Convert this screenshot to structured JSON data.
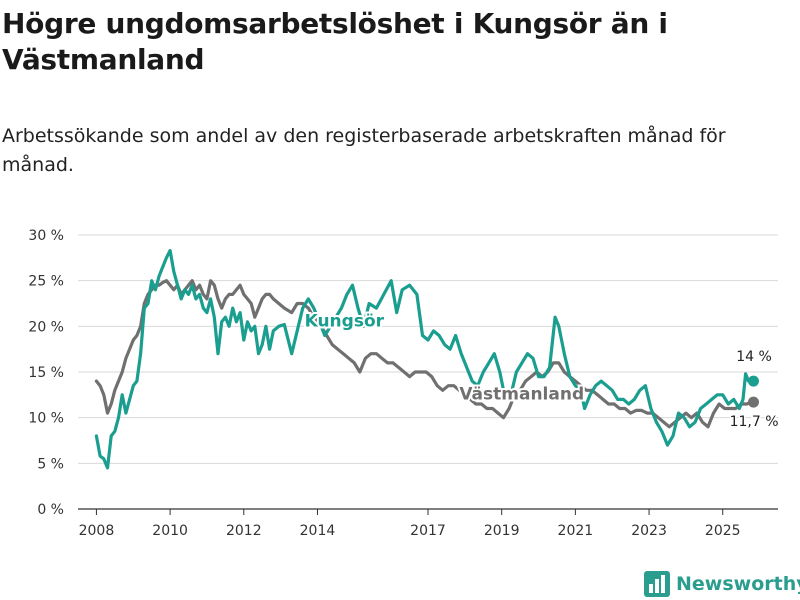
{
  "title": "Högre ungdomsarbetslöshet i Kungsör än i Västmanland",
  "subtitle": "Arbetssökande som andel av den registerbaserade arbetskraften månad för månad.",
  "brand": {
    "name": "Newsworthy",
    "icon": "bar-chart-logo-icon"
  },
  "colors": {
    "kungsor": "#1a9e8f",
    "vastmanland": "#707070",
    "grid": "#d9d9d9"
  },
  "chart_data": {
    "type": "line",
    "title": "Högre ungdomsarbetslöshet i Kungsör än i Västmanland",
    "ylabel": "",
    "xlabel": "",
    "ylim": [
      0,
      30
    ],
    "xlim": [
      2007.5,
      2026.5
    ],
    "y_ticks": [
      0,
      5,
      10,
      15,
      20,
      25,
      30
    ],
    "y_tick_labels": [
      "0 %",
      "5 %",
      "10 %",
      "15 %",
      "20 %",
      "25 %",
      "30 %"
    ],
    "x_ticks": [
      2008,
      2010,
      2012,
      2014,
      2017,
      2019,
      2021,
      2023,
      2025
    ],
    "x_tick_labels": [
      "2008",
      "2010",
      "2012",
      "2014",
      "2017",
      "2019",
      "2021",
      "2023",
      "2025"
    ],
    "series": [
      {
        "name": "Kungsör",
        "label": "Kungsör",
        "end_label": "14 %",
        "end_value": 14.0,
        "points": [
          [
            2008.0,
            8.0
          ],
          [
            2008.1,
            5.8
          ],
          [
            2008.2,
            5.5
          ],
          [
            2008.3,
            4.5
          ],
          [
            2008.4,
            8.0
          ],
          [
            2008.5,
            8.5
          ],
          [
            2008.6,
            10.0
          ],
          [
            2008.7,
            12.5
          ],
          [
            2008.8,
            10.5
          ],
          [
            2008.9,
            12.0
          ],
          [
            2009.0,
            13.5
          ],
          [
            2009.1,
            14.0
          ],
          [
            2009.2,
            17.0
          ],
          [
            2009.3,
            22.0
          ],
          [
            2009.4,
            22.5
          ],
          [
            2009.5,
            25.0
          ],
          [
            2009.6,
            24.0
          ],
          [
            2009.7,
            25.5
          ],
          [
            2009.8,
            26.5
          ],
          [
            2009.9,
            27.5
          ],
          [
            2010.0,
            28.3
          ],
          [
            2010.1,
            26.0
          ],
          [
            2010.2,
            24.5
          ],
          [
            2010.3,
            23.0
          ],
          [
            2010.4,
            24.0
          ],
          [
            2010.5,
            23.5
          ],
          [
            2010.6,
            24.5
          ],
          [
            2010.7,
            23.0
          ],
          [
            2010.8,
            23.5
          ],
          [
            2010.9,
            22.0
          ],
          [
            2011.0,
            21.5
          ],
          [
            2011.1,
            23.0
          ],
          [
            2011.2,
            21.0
          ],
          [
            2011.3,
            17.0
          ],
          [
            2011.4,
            20.5
          ],
          [
            2011.5,
            21.0
          ],
          [
            2011.6,
            20.0
          ],
          [
            2011.7,
            22.0
          ],
          [
            2011.8,
            20.5
          ],
          [
            2011.9,
            21.5
          ],
          [
            2012.0,
            18.5
          ],
          [
            2012.1,
            20.5
          ],
          [
            2012.2,
            19.5
          ],
          [
            2012.3,
            20.0
          ],
          [
            2012.4,
            17.0
          ],
          [
            2012.5,
            18.0
          ],
          [
            2012.6,
            20.0
          ],
          [
            2012.7,
            17.5
          ],
          [
            2012.8,
            19.5
          ],
          [
            2012.95,
            20.0
          ],
          [
            2013.1,
            20.2
          ],
          [
            2013.3,
            17.0
          ],
          [
            2013.45,
            19.5
          ],
          [
            2013.6,
            22.0
          ],
          [
            2013.75,
            23.0
          ],
          [
            2013.9,
            22.0
          ],
          [
            2014.0,
            21.0
          ],
          [
            2014.1,
            20.0
          ],
          [
            2014.2,
            19.0
          ],
          [
            2014.35,
            20.0
          ],
          [
            2014.5,
            21.0
          ],
          [
            2014.65,
            22.0
          ],
          [
            2014.8,
            23.5
          ],
          [
            2014.95,
            24.5
          ],
          [
            2015.1,
            22.0
          ],
          [
            2015.25,
            20.0
          ],
          [
            2015.4,
            22.5
          ],
          [
            2015.6,
            22.0
          ],
          [
            2015.8,
            23.5
          ],
          [
            2016.0,
            25.0
          ],
          [
            2016.15,
            21.5
          ],
          [
            2016.3,
            24.0
          ],
          [
            2016.5,
            24.5
          ],
          [
            2016.7,
            23.5
          ],
          [
            2016.85,
            19.0
          ],
          [
            2017.0,
            18.5
          ],
          [
            2017.15,
            19.5
          ],
          [
            2017.3,
            19.0
          ],
          [
            2017.45,
            18.0
          ],
          [
            2017.6,
            17.5
          ],
          [
            2017.75,
            19.0
          ],
          [
            2017.9,
            17.0
          ],
          [
            2018.05,
            15.5
          ],
          [
            2018.2,
            14.0
          ],
          [
            2018.35,
            13.5
          ],
          [
            2018.5,
            15.0
          ],
          [
            2018.65,
            16.0
          ],
          [
            2018.8,
            17.0
          ],
          [
            2018.95,
            15.0
          ],
          [
            2019.1,
            12.0
          ],
          [
            2019.25,
            12.5
          ],
          [
            2019.4,
            15.0
          ],
          [
            2019.55,
            16.0
          ],
          [
            2019.7,
            17.0
          ],
          [
            2019.85,
            16.5
          ],
          [
            2020.0,
            14.5
          ],
          [
            2020.15,
            14.5
          ],
          [
            2020.3,
            15.5
          ],
          [
            2020.45,
            21.0
          ],
          [
            2020.55,
            20.0
          ],
          [
            2020.7,
            17.0
          ],
          [
            2020.85,
            14.5
          ],
          [
            2021.0,
            13.5
          ],
          [
            2021.15,
            13.0
          ],
          [
            2021.25,
            11.0
          ],
          [
            2021.4,
            12.5
          ],
          [
            2021.55,
            13.5
          ],
          [
            2021.7,
            14.0
          ],
          [
            2021.85,
            13.5
          ],
          [
            2022.0,
            13.0
          ],
          [
            2022.15,
            12.0
          ],
          [
            2022.3,
            12.0
          ],
          [
            2022.45,
            11.5
          ],
          [
            2022.6,
            12.0
          ],
          [
            2022.75,
            13.0
          ],
          [
            2022.9,
            13.5
          ],
          [
            2023.05,
            11.0
          ],
          [
            2023.2,
            9.5
          ],
          [
            2023.35,
            8.5
          ],
          [
            2023.5,
            7.0
          ],
          [
            2023.65,
            8.0
          ],
          [
            2023.8,
            10.5
          ],
          [
            2023.95,
            10.0
          ],
          [
            2024.1,
            9.0
          ],
          [
            2024.25,
            9.5
          ],
          [
            2024.4,
            11.0
          ],
          [
            2024.55,
            11.5
          ],
          [
            2024.7,
            12.0
          ],
          [
            2024.85,
            12.5
          ],
          [
            2025.0,
            12.5
          ],
          [
            2025.15,
            11.5
          ],
          [
            2025.3,
            12.0
          ],
          [
            2025.45,
            11.0
          ],
          [
            2025.55,
            12.0
          ],
          [
            2025.62,
            14.8
          ],
          [
            2025.7,
            14.0
          ],
          [
            2025.78,
            14.0
          ]
        ]
      },
      {
        "name": "Västmanland",
        "label": "Västmanland",
        "end_label": "11,7 %",
        "end_value": 11.7,
        "points": [
          [
            2008.0,
            14.0
          ],
          [
            2008.1,
            13.5
          ],
          [
            2008.2,
            12.5
          ],
          [
            2008.3,
            10.5
          ],
          [
            2008.4,
            11.5
          ],
          [
            2008.5,
            13.0
          ],
          [
            2008.6,
            14.0
          ],
          [
            2008.7,
            15.0
          ],
          [
            2008.8,
            16.5
          ],
          [
            2008.9,
            17.5
          ],
          [
            2009.0,
            18.5
          ],
          [
            2009.1,
            19.0
          ],
          [
            2009.2,
            20.0
          ],
          [
            2009.3,
            22.5
          ],
          [
            2009.4,
            23.5
          ],
          [
            2009.5,
            24.0
          ],
          [
            2009.6,
            24.5
          ],
          [
            2009.7,
            24.5
          ],
          [
            2009.8,
            24.8
          ],
          [
            2009.9,
            25.0
          ],
          [
            2010.0,
            24.5
          ],
          [
            2010.1,
            24.0
          ],
          [
            2010.2,
            24.5
          ],
          [
            2010.3,
            23.5
          ],
          [
            2010.4,
            24.0
          ],
          [
            2010.5,
            24.5
          ],
          [
            2010.6,
            25.0
          ],
          [
            2010.7,
            24.0
          ],
          [
            2010.8,
            24.5
          ],
          [
            2010.9,
            23.5
          ],
          [
            2011.0,
            23.0
          ],
          [
            2011.1,
            25.0
          ],
          [
            2011.2,
            24.5
          ],
          [
            2011.3,
            23.0
          ],
          [
            2011.4,
            22.0
          ],
          [
            2011.5,
            23.0
          ],
          [
            2011.6,
            23.5
          ],
          [
            2011.7,
            23.5
          ],
          [
            2011.8,
            24.0
          ],
          [
            2011.9,
            24.5
          ],
          [
            2012.0,
            23.5
          ],
          [
            2012.1,
            23.0
          ],
          [
            2012.2,
            22.5
          ],
          [
            2012.3,
            21.0
          ],
          [
            2012.4,
            22.0
          ],
          [
            2012.5,
            23.0
          ],
          [
            2012.6,
            23.5
          ],
          [
            2012.7,
            23.5
          ],
          [
            2012.8,
            23.0
          ],
          [
            2012.95,
            22.5
          ],
          [
            2013.1,
            22.0
          ],
          [
            2013.3,
            21.5
          ],
          [
            2013.45,
            22.5
          ],
          [
            2013.6,
            22.5
          ],
          [
            2013.75,
            22.0
          ],
          [
            2013.9,
            21.0
          ],
          [
            2014.0,
            20.5
          ],
          [
            2014.1,
            20.0
          ],
          [
            2014.25,
            19.0
          ],
          [
            2014.4,
            18.0
          ],
          [
            2014.55,
            17.5
          ],
          [
            2014.7,
            17.0
          ],
          [
            2014.85,
            16.5
          ],
          [
            2015.0,
            16.0
          ],
          [
            2015.15,
            15.0
          ],
          [
            2015.3,
            16.5
          ],
          [
            2015.45,
            17.0
          ],
          [
            2015.6,
            17.0
          ],
          [
            2015.75,
            16.5
          ],
          [
            2015.9,
            16.0
          ],
          [
            2016.05,
            16.0
          ],
          [
            2016.2,
            15.5
          ],
          [
            2016.35,
            15.0
          ],
          [
            2016.5,
            14.5
          ],
          [
            2016.65,
            15.0
          ],
          [
            2016.8,
            15.0
          ],
          [
            2016.95,
            15.0
          ],
          [
            2017.1,
            14.5
          ],
          [
            2017.25,
            13.5
          ],
          [
            2017.4,
            13.0
          ],
          [
            2017.55,
            13.5
          ],
          [
            2017.7,
            13.5
          ],
          [
            2017.85,
            13.0
          ],
          [
            2018.0,
            12.5
          ],
          [
            2018.15,
            12.0
          ],
          [
            2018.3,
            11.5
          ],
          [
            2018.45,
            11.5
          ],
          [
            2018.6,
            11.0
          ],
          [
            2018.75,
            11.0
          ],
          [
            2018.9,
            10.5
          ],
          [
            2019.05,
            10.0
          ],
          [
            2019.2,
            11.0
          ],
          [
            2019.35,
            12.5
          ],
          [
            2019.5,
            13.0
          ],
          [
            2019.65,
            14.0
          ],
          [
            2019.8,
            14.5
          ],
          [
            2019.95,
            15.0
          ],
          [
            2020.1,
            14.5
          ],
          [
            2020.25,
            15.0
          ],
          [
            2020.4,
            16.0
          ],
          [
            2020.55,
            16.0
          ],
          [
            2020.7,
            15.0
          ],
          [
            2020.85,
            14.5
          ],
          [
            2021.0,
            14.0
          ],
          [
            2021.15,
            13.5
          ],
          [
            2021.3,
            13.0
          ],
          [
            2021.45,
            13.0
          ],
          [
            2021.6,
            12.5
          ],
          [
            2021.75,
            12.0
          ],
          [
            2021.9,
            11.5
          ],
          [
            2022.05,
            11.5
          ],
          [
            2022.2,
            11.0
          ],
          [
            2022.35,
            11.0
          ],
          [
            2022.5,
            10.5
          ],
          [
            2022.65,
            10.8
          ],
          [
            2022.8,
            10.8
          ],
          [
            2022.95,
            10.5
          ],
          [
            2023.1,
            10.5
          ],
          [
            2023.25,
            10.0
          ],
          [
            2023.4,
            9.5
          ],
          [
            2023.55,
            9.0
          ],
          [
            2023.7,
            9.5
          ],
          [
            2023.85,
            10.0
          ],
          [
            2024.0,
            10.5
          ],
          [
            2024.15,
            10.0
          ],
          [
            2024.3,
            10.5
          ],
          [
            2024.45,
            9.5
          ],
          [
            2024.6,
            9.0
          ],
          [
            2024.75,
            10.5
          ],
          [
            2024.9,
            11.5
          ],
          [
            2025.05,
            11.0
          ],
          [
            2025.2,
            11.0
          ],
          [
            2025.35,
            11.0
          ],
          [
            2025.5,
            11.5
          ],
          [
            2025.65,
            11.5
          ],
          [
            2025.78,
            11.7
          ]
        ]
      }
    ]
  }
}
